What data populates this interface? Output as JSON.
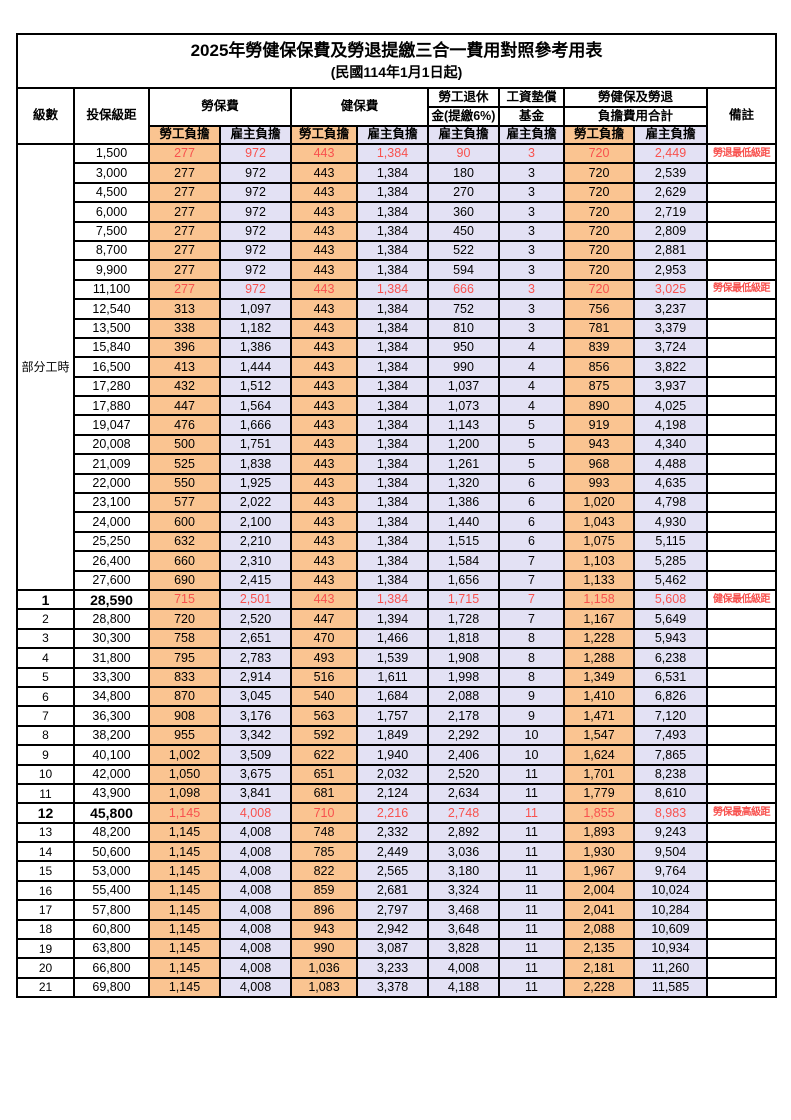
{
  "title": "2025年勞健保保費及勞退提繳三合一費用對照參考用表",
  "subtitle": "(民國114年1月1日起)",
  "colors": {
    "employee_bg": "#FAC491",
    "employer_bg": "#E3E1F4",
    "highlight_red": "#F8514E",
    "border": "#000000"
  },
  "header": {
    "level_label": "級數",
    "bracket_label": "投保級距",
    "labor_group": "勞保費",
    "health_group": "健保費",
    "pension_line1": "勞工退休",
    "pension_line2": "金(提繳6%)",
    "wage_line1": "工資墊償",
    "wage_line2": "基金",
    "total_line1": "勞健保及勞退",
    "total_line2": "負擔費用合計",
    "note_label": "備註",
    "employee_label": "勞工負擔",
    "employer_label": "雇主負擔"
  },
  "part_time_label": "部分工時",
  "part_time_rowspan": 23,
  "value_columns": [
    "labor_employee",
    "labor_employer",
    "health_employee",
    "health_employer",
    "pension_employer",
    "wage_fund_employer",
    "total_employee",
    "total_employer"
  ],
  "value_column_styles": [
    "emp",
    "er",
    "emp",
    "er",
    "er",
    "er",
    "emp",
    "er"
  ],
  "rows": [
    {
      "lv": "",
      "br": "1,500",
      "v": [
        "277",
        "972",
        "443",
        "1,384",
        "90",
        "3",
        "720",
        "2,449"
      ],
      "note": "勞退最低級距",
      "hl": true
    },
    {
      "lv": "",
      "br": "3,000",
      "v": [
        "277",
        "972",
        "443",
        "1,384",
        "180",
        "3",
        "720",
        "2,539"
      ],
      "note": ""
    },
    {
      "lv": "",
      "br": "4,500",
      "v": [
        "277",
        "972",
        "443",
        "1,384",
        "270",
        "3",
        "720",
        "2,629"
      ],
      "note": ""
    },
    {
      "lv": "",
      "br": "6,000",
      "v": [
        "277",
        "972",
        "443",
        "1,384",
        "360",
        "3",
        "720",
        "2,719"
      ],
      "note": ""
    },
    {
      "lv": "",
      "br": "7,500",
      "v": [
        "277",
        "972",
        "443",
        "1,384",
        "450",
        "3",
        "720",
        "2,809"
      ],
      "note": ""
    },
    {
      "lv": "",
      "br": "8,700",
      "v": [
        "277",
        "972",
        "443",
        "1,384",
        "522",
        "3",
        "720",
        "2,881"
      ],
      "note": ""
    },
    {
      "lv": "",
      "br": "9,900",
      "v": [
        "277",
        "972",
        "443",
        "1,384",
        "594",
        "3",
        "720",
        "2,953"
      ],
      "note": ""
    },
    {
      "lv": "",
      "br": "11,100",
      "v": [
        "277",
        "972",
        "443",
        "1,384",
        "666",
        "3",
        "720",
        "3,025"
      ],
      "note": "勞保最低級距",
      "hl": true
    },
    {
      "lv": "",
      "br": "12,540",
      "v": [
        "313",
        "1,097",
        "443",
        "1,384",
        "752",
        "3",
        "756",
        "3,237"
      ],
      "note": ""
    },
    {
      "lv": "",
      "br": "13,500",
      "v": [
        "338",
        "1,182",
        "443",
        "1,384",
        "810",
        "3",
        "781",
        "3,379"
      ],
      "note": ""
    },
    {
      "lv": "",
      "br": "15,840",
      "v": [
        "396",
        "1,386",
        "443",
        "1,384",
        "950",
        "4",
        "839",
        "3,724"
      ],
      "note": ""
    },
    {
      "lv": "",
      "br": "16,500",
      "v": [
        "413",
        "1,444",
        "443",
        "1,384",
        "990",
        "4",
        "856",
        "3,822"
      ],
      "note": ""
    },
    {
      "lv": "",
      "br": "17,280",
      "v": [
        "432",
        "1,512",
        "443",
        "1,384",
        "1,037",
        "4",
        "875",
        "3,937"
      ],
      "note": ""
    },
    {
      "lv": "",
      "br": "17,880",
      "v": [
        "447",
        "1,564",
        "443",
        "1,384",
        "1,073",
        "4",
        "890",
        "4,025"
      ],
      "note": ""
    },
    {
      "lv": "",
      "br": "19,047",
      "v": [
        "476",
        "1,666",
        "443",
        "1,384",
        "1,143",
        "5",
        "919",
        "4,198"
      ],
      "note": ""
    },
    {
      "lv": "",
      "br": "20,008",
      "v": [
        "500",
        "1,751",
        "443",
        "1,384",
        "1,200",
        "5",
        "943",
        "4,340"
      ],
      "note": ""
    },
    {
      "lv": "",
      "br": "21,009",
      "v": [
        "525",
        "1,838",
        "443",
        "1,384",
        "1,261",
        "5",
        "968",
        "4,488"
      ],
      "note": ""
    },
    {
      "lv": "",
      "br": "22,000",
      "v": [
        "550",
        "1,925",
        "443",
        "1,384",
        "1,320",
        "6",
        "993",
        "4,635"
      ],
      "note": ""
    },
    {
      "lv": "",
      "br": "23,100",
      "v": [
        "577",
        "2,022",
        "443",
        "1,384",
        "1,386",
        "6",
        "1,020",
        "4,798"
      ],
      "note": ""
    },
    {
      "lv": "",
      "br": "24,000",
      "v": [
        "600",
        "2,100",
        "443",
        "1,384",
        "1,440",
        "6",
        "1,043",
        "4,930"
      ],
      "note": ""
    },
    {
      "lv": "",
      "br": "25,250",
      "v": [
        "632",
        "2,210",
        "443",
        "1,384",
        "1,515",
        "6",
        "1,075",
        "5,115"
      ],
      "note": ""
    },
    {
      "lv": "",
      "br": "26,400",
      "v": [
        "660",
        "2,310",
        "443",
        "1,384",
        "1,584",
        "7",
        "1,103",
        "5,285"
      ],
      "note": ""
    },
    {
      "lv": "",
      "br": "27,600",
      "v": [
        "690",
        "2,415",
        "443",
        "1,384",
        "1,656",
        "7",
        "1,133",
        "5,462"
      ],
      "note": ""
    },
    {
      "lv": "1",
      "br": "28,590",
      "v": [
        "715",
        "2,501",
        "443",
        "1,384",
        "1,715",
        "7",
        "1,158",
        "5,608"
      ],
      "note": "健保最低級距",
      "hl": true,
      "bold": true
    },
    {
      "lv": "2",
      "br": "28,800",
      "v": [
        "720",
        "2,520",
        "447",
        "1,394",
        "1,728",
        "7",
        "1,167",
        "5,649"
      ],
      "note": ""
    },
    {
      "lv": "3",
      "br": "30,300",
      "v": [
        "758",
        "2,651",
        "470",
        "1,466",
        "1,818",
        "8",
        "1,228",
        "5,943"
      ],
      "note": ""
    },
    {
      "lv": "4",
      "br": "31,800",
      "v": [
        "795",
        "2,783",
        "493",
        "1,539",
        "1,908",
        "8",
        "1,288",
        "6,238"
      ],
      "note": ""
    },
    {
      "lv": "5",
      "br": "33,300",
      "v": [
        "833",
        "2,914",
        "516",
        "1,611",
        "1,998",
        "8",
        "1,349",
        "6,531"
      ],
      "note": ""
    },
    {
      "lv": "6",
      "br": "34,800",
      "v": [
        "870",
        "3,045",
        "540",
        "1,684",
        "2,088",
        "9",
        "1,410",
        "6,826"
      ],
      "note": ""
    },
    {
      "lv": "7",
      "br": "36,300",
      "v": [
        "908",
        "3,176",
        "563",
        "1,757",
        "2,178",
        "9",
        "1,471",
        "7,120"
      ],
      "note": ""
    },
    {
      "lv": "8",
      "br": "38,200",
      "v": [
        "955",
        "3,342",
        "592",
        "1,849",
        "2,292",
        "10",
        "1,547",
        "7,493"
      ],
      "note": ""
    },
    {
      "lv": "9",
      "br": "40,100",
      "v": [
        "1,002",
        "3,509",
        "622",
        "1,940",
        "2,406",
        "10",
        "1,624",
        "7,865"
      ],
      "note": ""
    },
    {
      "lv": "10",
      "br": "42,000",
      "v": [
        "1,050",
        "3,675",
        "651",
        "2,032",
        "2,520",
        "11",
        "1,701",
        "8,238"
      ],
      "note": ""
    },
    {
      "lv": "11",
      "br": "43,900",
      "v": [
        "1,098",
        "3,841",
        "681",
        "2,124",
        "2,634",
        "11",
        "1,779",
        "8,610"
      ],
      "note": ""
    },
    {
      "lv": "12",
      "br": "45,800",
      "v": [
        "1,145",
        "4,008",
        "710",
        "2,216",
        "2,748",
        "11",
        "1,855",
        "8,983"
      ],
      "note": "勞保最高級距",
      "hl": true,
      "bold": true
    },
    {
      "lv": "13",
      "br": "48,200",
      "v": [
        "1,145",
        "4,008",
        "748",
        "2,332",
        "2,892",
        "11",
        "1,893",
        "9,243"
      ],
      "note": ""
    },
    {
      "lv": "14",
      "br": "50,600",
      "v": [
        "1,145",
        "4,008",
        "785",
        "2,449",
        "3,036",
        "11",
        "1,930",
        "9,504"
      ],
      "note": ""
    },
    {
      "lv": "15",
      "br": "53,000",
      "v": [
        "1,145",
        "4,008",
        "822",
        "2,565",
        "3,180",
        "11",
        "1,967",
        "9,764"
      ],
      "note": ""
    },
    {
      "lv": "16",
      "br": "55,400",
      "v": [
        "1,145",
        "4,008",
        "859",
        "2,681",
        "3,324",
        "11",
        "2,004",
        "10,024"
      ],
      "note": ""
    },
    {
      "lv": "17",
      "br": "57,800",
      "v": [
        "1,145",
        "4,008",
        "896",
        "2,797",
        "3,468",
        "11",
        "2,041",
        "10,284"
      ],
      "note": ""
    },
    {
      "lv": "18",
      "br": "60,800",
      "v": [
        "1,145",
        "4,008",
        "943",
        "2,942",
        "3,648",
        "11",
        "2,088",
        "10,609"
      ],
      "note": ""
    },
    {
      "lv": "19",
      "br": "63,800",
      "v": [
        "1,145",
        "4,008",
        "990",
        "3,087",
        "3,828",
        "11",
        "2,135",
        "10,934"
      ],
      "note": ""
    },
    {
      "lv": "20",
      "br": "66,800",
      "v": [
        "1,145",
        "4,008",
        "1,036",
        "3,233",
        "4,008",
        "11",
        "2,181",
        "11,260"
      ],
      "note": ""
    },
    {
      "lv": "21",
      "br": "69,800",
      "v": [
        "1,145",
        "4,008",
        "1,083",
        "3,378",
        "4,188",
        "11",
        "2,228",
        "11,585"
      ],
      "note": ""
    }
  ]
}
